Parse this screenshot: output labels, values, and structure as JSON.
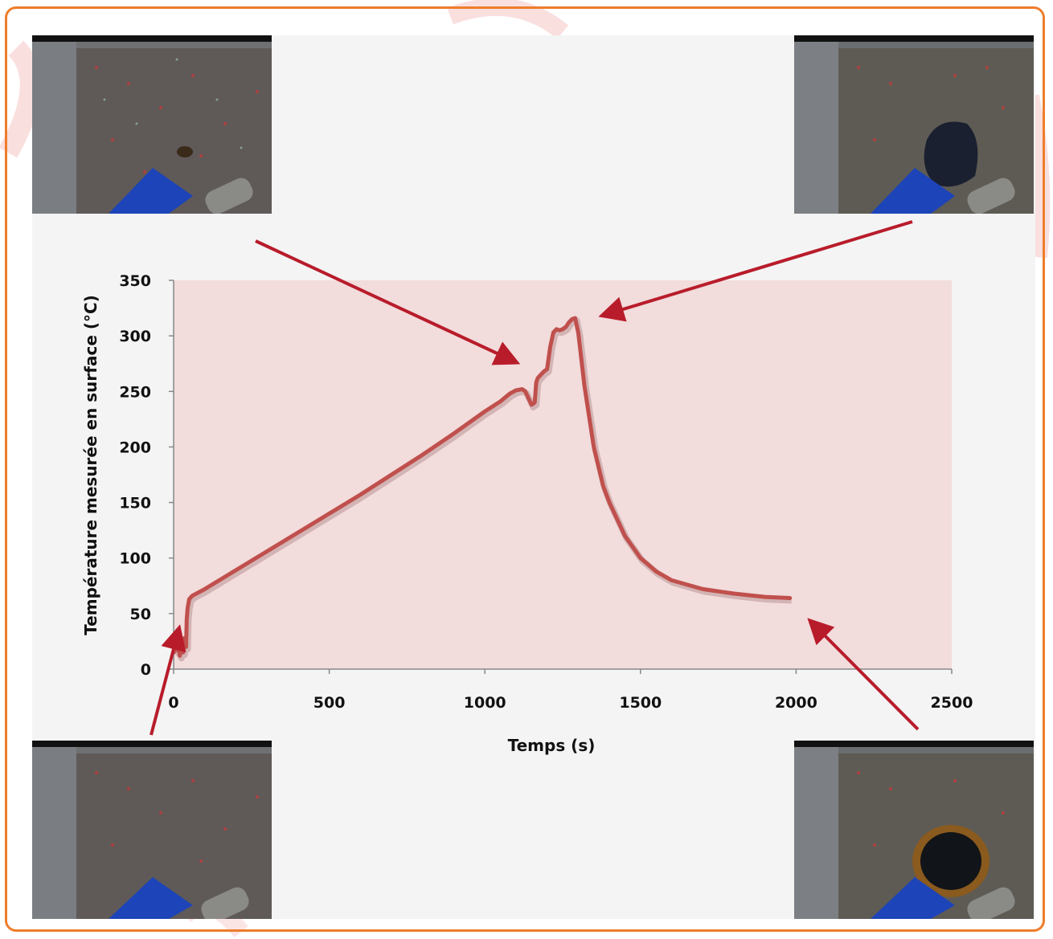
{
  "colors": {
    "frame": "#ee7d2b",
    "plot_area": "#f2dcdc",
    "series_line": "#c0504d",
    "arrow": "#b81c2b",
    "panel": "#f4f4f4"
  },
  "photos": [
    {
      "position": "top-left",
      "description_icon": "camera-snapshot-icon"
    },
    {
      "position": "top-right",
      "description_icon": "camera-snapshot-icon"
    },
    {
      "position": "bottom-left",
      "description_icon": "camera-snapshot-icon"
    },
    {
      "position": "bottom-right",
      "description_icon": "camera-snapshot-icon"
    }
  ],
  "chart_data": {
    "type": "line",
    "title": "",
    "xlabel": "Temps (s)",
    "ylabel": "Température mesurée en surface (°C)",
    "xlim": [
      0,
      2500
    ],
    "ylim": [
      0,
      350
    ],
    "xticks": [
      0,
      500,
      1000,
      1500,
      2000,
      2500
    ],
    "yticks": [
      0,
      50,
      100,
      150,
      200,
      250,
      300,
      350
    ],
    "grid": false,
    "legend": "none",
    "series": [
      {
        "x": [
          0,
          15,
          20,
          25,
          30,
          35,
          40,
          42,
          45,
          50,
          60,
          100,
          200,
          300,
          400,
          500,
          600,
          700,
          800,
          900,
          1000,
          1050,
          1080,
          1100,
          1120,
          1130,
          1140,
          1150,
          1160,
          1165,
          1170,
          1180,
          1190,
          1200,
          1210,
          1220,
          1230,
          1240,
          1250,
          1260,
          1270,
          1280,
          1290,
          1300,
          1320,
          1350,
          1380,
          1400,
          1450,
          1500,
          1550,
          1600,
          1700,
          1800,
          1900,
          1980
        ],
        "y": [
          15,
          20,
          12,
          22,
          15,
          28,
          20,
          45,
          55,
          63,
          66,
          72,
          89,
          106,
          123,
          140,
          157,
          175,
          193,
          212,
          232,
          241,
          248,
          251,
          252,
          250,
          244,
          238,
          240,
          258,
          262,
          265,
          268,
          270,
          290,
          303,
          306,
          305,
          306,
          308,
          312,
          315,
          316,
          303,
          255,
          200,
          165,
          150,
          120,
          100,
          88,
          80,
          72,
          68,
          65,
          64
        ]
      }
    ]
  }
}
